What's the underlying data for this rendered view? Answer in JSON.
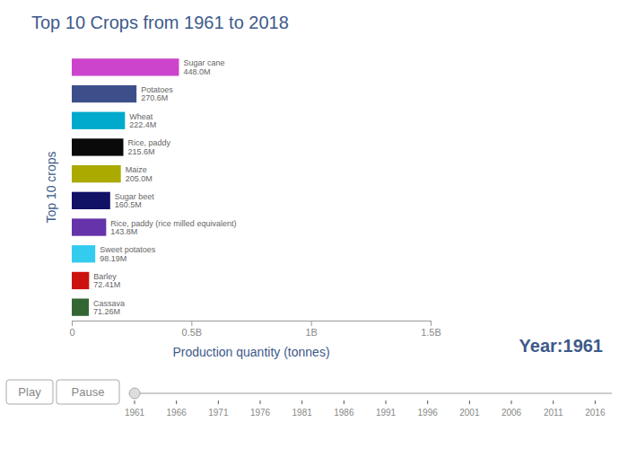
{
  "chart_data": {
    "type": "bar",
    "orientation": "horizontal",
    "title": "Top 10 Crops from 1961 to 2018",
    "x_label": "Production quantity (tonnes)",
    "y_label": "Top 10 crops",
    "categories": [
      "Sugar cane",
      "Potatoes",
      "Wheat",
      "Rice, paddy",
      "Maize",
      "Sugar beet",
      "Rice, paddy (rice milled equivalent)",
      "Sweet potatoes",
      "Barley",
      "Cassava"
    ],
    "values": [
      448000000,
      270600000,
      222400000,
      215600000,
      205000000,
      160500000,
      143800000,
      98190000,
      72410000,
      71260000
    ],
    "value_labels": [
      "448.0M",
      "270.6M",
      "222.4M",
      "215.6M",
      "205.0M",
      "160.5M",
      "143.8M",
      "98.19M",
      "72.41M",
      "71.26M"
    ],
    "colors": [
      "#CC44CC",
      "#3D4F8A",
      "#00AACC",
      "#0A0A0A",
      "#AAAA00",
      "#111166",
      "#6633AA",
      "#33CCEE",
      "#CC1111",
      "#336633"
    ],
    "data_labels": true,
    "tick_labels": "x",
    "grid": false,
    "xlim": [
      0,
      1500000000
    ],
    "xticks": [
      0,
      {
        "value": 500000000,
        "label": "0.5B"
      },
      {
        "value": 1000000000,
        "label": "1B"
      },
      {
        "value": 1500000000,
        "label": "1.5B"
      }
    ],
    "annotations": [
      "Year:1961",
      "Play",
      "Pause",
      "1961",
      "1966",
      "1971",
      "1976",
      "1981",
      "1986",
      "1991",
      "1996",
      "2001",
      "2006",
      "2011",
      "2016"
    ]
  }
}
